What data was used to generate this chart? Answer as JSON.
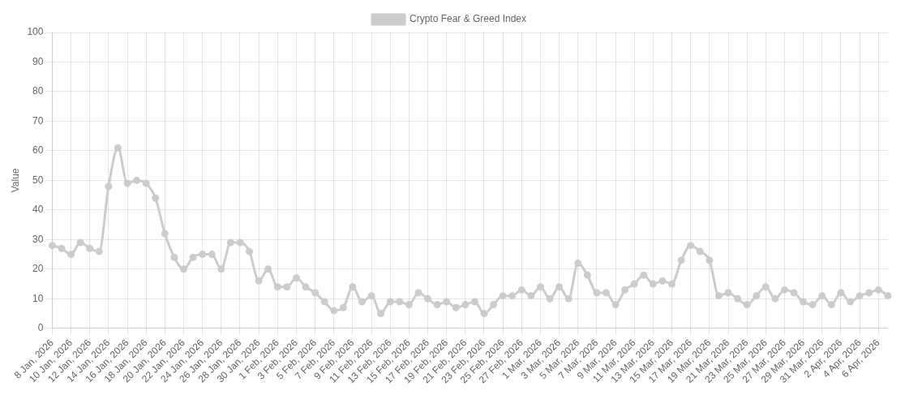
{
  "chart_data": {
    "type": "line",
    "ylabel": "Value",
    "legend": "top",
    "grid": true,
    "marker": "circle",
    "line_style": "solid",
    "ylim": [
      0,
      100
    ],
    "yticks": [
      0,
      10,
      20,
      30,
      40,
      50,
      60,
      70,
      80,
      90,
      100
    ],
    "categories": [
      "8 Jan, 2026",
      null,
      "10 Jan, 2026",
      null,
      "12 Jan, 2026",
      null,
      "14 Jan, 2026",
      null,
      "16 Jan, 2026",
      null,
      "18 Jan, 2026",
      null,
      "20 Jan, 2026",
      null,
      "22 Jan, 2026",
      null,
      "24 Jan, 2026",
      null,
      "26 Jan, 2026",
      null,
      "28 Jan, 2026",
      null,
      "30 Jan, 2026",
      null,
      "1 Feb, 2026",
      null,
      "3 Feb, 2026",
      null,
      "5 Feb, 2026",
      null,
      "7 Feb, 2026",
      null,
      "9 Feb, 2026",
      null,
      "11 Feb, 2026",
      null,
      "13 Feb, 2026",
      null,
      "15 Feb, 2026",
      null,
      "17 Feb, 2026",
      null,
      "19 Feb, 2026",
      null,
      "21 Feb, 2026",
      null,
      "23 Feb, 2026",
      null,
      "25 Feb, 2026",
      null,
      "27 Feb, 2026",
      null,
      "1 Mar, 2026",
      null,
      "3 Mar, 2026",
      null,
      "5 Mar, 2026",
      null,
      "7 Mar, 2026",
      null,
      "9 Mar, 2026",
      null,
      "11 Mar, 2026",
      null,
      "13 Mar, 2026",
      null,
      "15 Mar, 2026",
      null,
      "17 Mar, 2026",
      null,
      "19 Mar, 2026",
      null,
      "21 Mar, 2026",
      null,
      "23 Mar, 2026",
      null,
      "25 Mar, 2026",
      null,
      "27 Mar, 2026",
      null,
      "29 Mar, 2026",
      null,
      "31 Mar, 2026",
      null,
      "2 Apr, 2026",
      null,
      "4 Apr, 2026",
      null,
      "6 Apr, 2026",
      null
    ],
    "series": [
      {
        "name": "Crypto Fear & Greed Index",
        "color": "#cccccc",
        "values": [
          28,
          27,
          25,
          29,
          27,
          26,
          48,
          61,
          49,
          50,
          49,
          44,
          32,
          24,
          20,
          24,
          25,
          25,
          20,
          29,
          29,
          26,
          16,
          20,
          14,
          14,
          17,
          14,
          12,
          9,
          6,
          7,
          14,
          9,
          11,
          5,
          9,
          9,
          8,
          12,
          10,
          8,
          9,
          7,
          8,
          9,
          5,
          8,
          11,
          11,
          13,
          11,
          14,
          10,
          14,
          10,
          22,
          18,
          12,
          12,
          8,
          13,
          15,
          18,
          15,
          16,
          15,
          23,
          28,
          26,
          23,
          11,
          12,
          10,
          8,
          11,
          14,
          10,
          13,
          12,
          9,
          8,
          11,
          8,
          12,
          9,
          11,
          12,
          13,
          11
        ]
      }
    ]
  }
}
